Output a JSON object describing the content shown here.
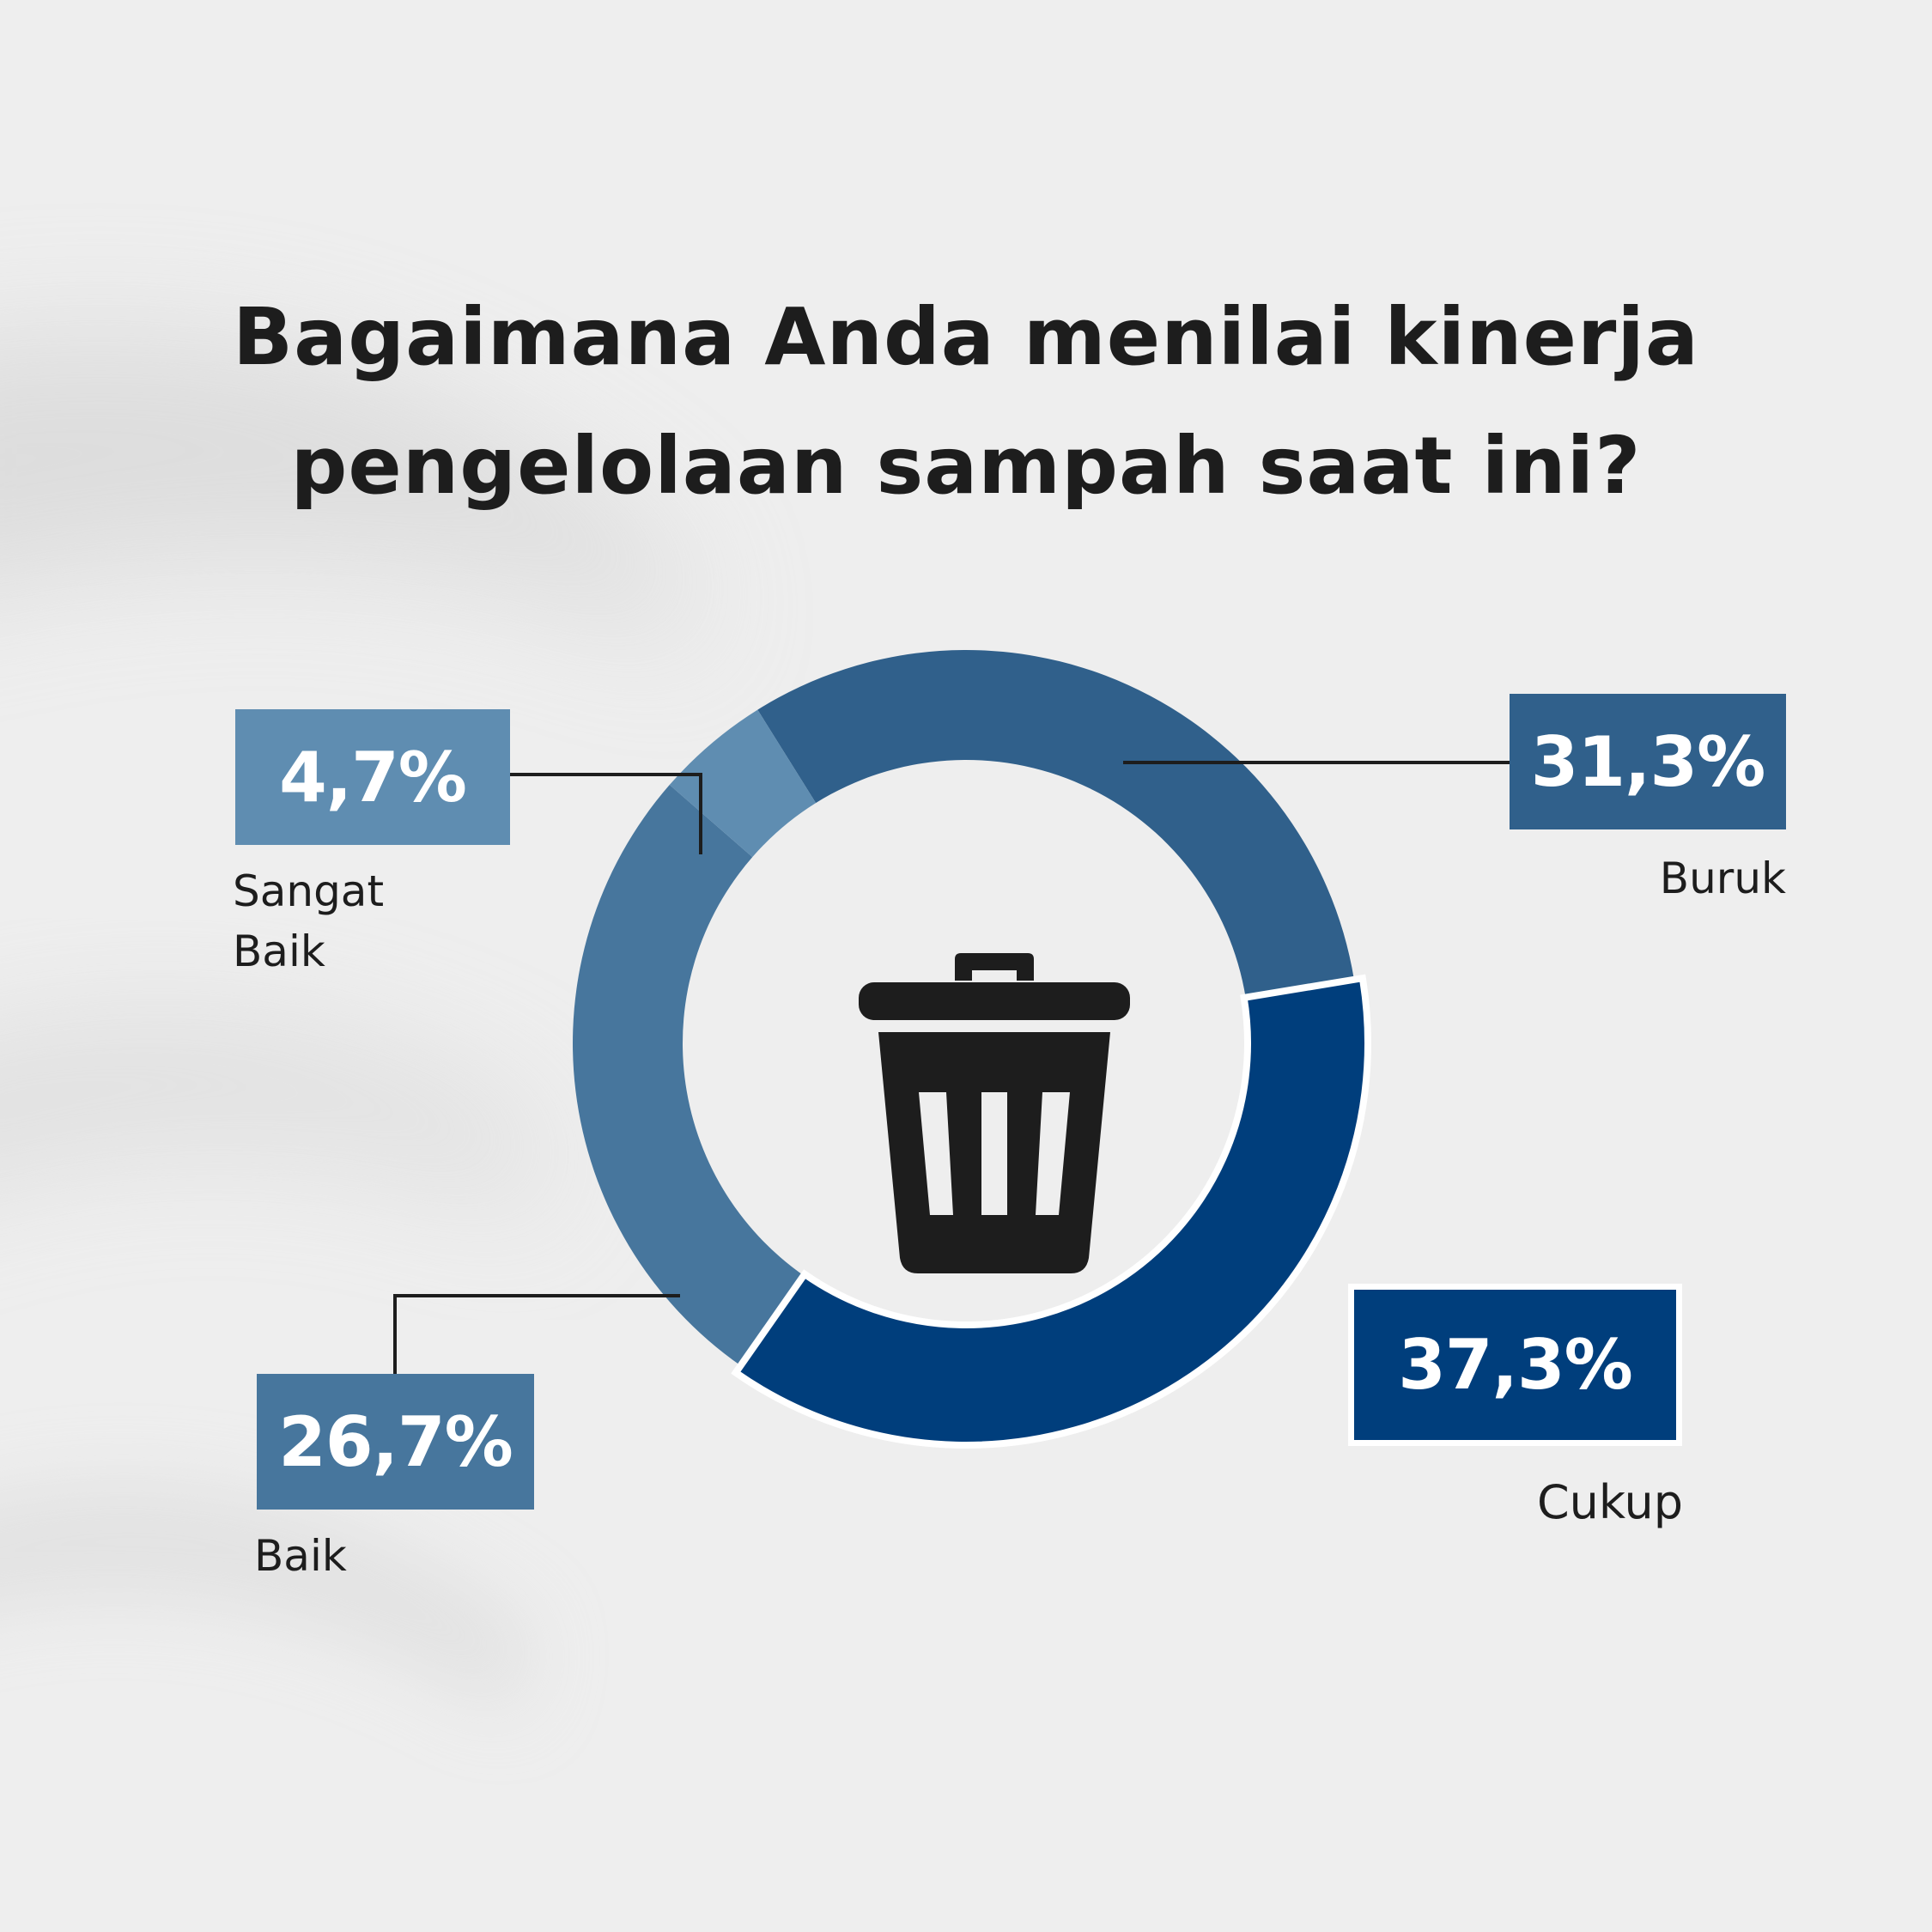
{
  "title_lines": [
    "Bagaimana Anda menilai kinerja",
    "pengelolaan sampah saat ini?"
  ],
  "center_icon": "trash-can-icon",
  "colors": {
    "sangat_baik": "#5f8db1",
    "baik": "#47769d",
    "cukup": "#003e7c",
    "buruk": "#30608b",
    "leader": "#1d1d1d",
    "icon": "#1d1d1d"
  },
  "chart_data": {
    "type": "pie",
    "title": "Bagaimana Anda menilai kinerja pengelolaan sampah saat ini?",
    "slices": [
      {
        "label": "Buruk",
        "value": 31.3,
        "display": "31,3%",
        "color": "#30608b"
      },
      {
        "label": "Cukup",
        "value": 37.3,
        "display": "37,3%",
        "color": "#003e7c"
      },
      {
        "label": "Baik",
        "value": 26.7,
        "display": "26,7%",
        "color": "#47769d"
      },
      {
        "label": "Sangat\nBaik",
        "value": 4.7,
        "display": "4,7%",
        "color": "#5f8db1"
      }
    ]
  }
}
